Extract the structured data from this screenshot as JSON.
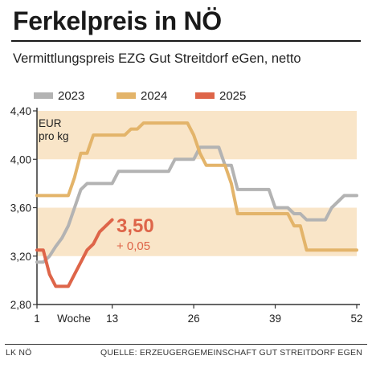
{
  "header": {
    "title": "Ferkelpreis in NÖ",
    "subtitle": "Vermittlungspreis EZG Gut Streitdorf eGen, netto"
  },
  "footer": {
    "left": "LK NÖ",
    "right": "QUELLE: ERZEUGERGEMEINSCHAFT GUT STREITDORF EGEN"
  },
  "colors": {
    "y2023": "#b3b3b3",
    "y2024": "#e3b46a",
    "y2025": "#de6549",
    "band": "#f9e5c8",
    "annotation": "#de6549"
  },
  "chart_data": {
    "type": "line",
    "unit_label": [
      "EUR",
      "pro kg"
    ],
    "xlabel": "Woche",
    "x_ticks": [
      1,
      13,
      26,
      39,
      52
    ],
    "x_tick_labels": [
      "1",
      "13",
      "26",
      "39",
      "52"
    ],
    "xlim": [
      1,
      52
    ],
    "y_ticks": [
      2.8,
      3.2,
      3.6,
      4.0,
      4.4
    ],
    "y_tick_labels": [
      "2,80",
      "3,20",
      "3,60",
      "4,00",
      "4,40"
    ],
    "ylim": [
      2.8,
      4.4
    ],
    "bands": [
      [
        3.2,
        3.6
      ],
      [
        4.0,
        4.4
      ]
    ],
    "legend_position": "top",
    "annotation": {
      "value": "3,50",
      "change": "+ 0,05"
    },
    "series": [
      {
        "name": "2023",
        "x": [
          1,
          2,
          3,
          4,
          5,
          6,
          7,
          8,
          9,
          10,
          11,
          12,
          13,
          14,
          15,
          16,
          17,
          18,
          19,
          20,
          21,
          22,
          23,
          24,
          25,
          26,
          27,
          28,
          29,
          30,
          31,
          32,
          33,
          34,
          35,
          36,
          37,
          38,
          39,
          40,
          41,
          42,
          43,
          44,
          45,
          46,
          47,
          48,
          49,
          50,
          51,
          52
        ],
        "y": [
          3.15,
          3.15,
          3.2,
          3.28,
          3.35,
          3.45,
          3.6,
          3.75,
          3.8,
          3.8,
          3.8,
          3.8,
          3.8,
          3.9,
          3.9,
          3.9,
          3.9,
          3.9,
          3.9,
          3.9,
          3.9,
          3.9,
          4.0,
          4.0,
          4.0,
          4.0,
          4.1,
          4.1,
          4.1,
          4.1,
          3.95,
          3.95,
          3.75,
          3.75,
          3.75,
          3.75,
          3.75,
          3.75,
          3.6,
          3.6,
          3.6,
          3.55,
          3.55,
          3.5,
          3.5,
          3.5,
          3.5,
          3.6,
          3.65,
          3.7,
          3.7,
          3.7
        ]
      },
      {
        "name": "2024",
        "x": [
          1,
          2,
          3,
          4,
          5,
          6,
          7,
          8,
          9,
          10,
          11,
          12,
          13,
          14,
          15,
          16,
          17,
          18,
          19,
          20,
          21,
          22,
          23,
          24,
          25,
          26,
          27,
          28,
          29,
          30,
          31,
          32,
          33,
          34,
          35,
          36,
          37,
          38,
          39,
          40,
          41,
          42,
          43,
          44,
          45,
          46,
          47,
          48,
          49,
          50,
          51,
          52
        ],
        "y": [
          3.7,
          3.7,
          3.7,
          3.7,
          3.7,
          3.7,
          3.85,
          4.05,
          4.05,
          4.2,
          4.2,
          4.2,
          4.2,
          4.2,
          4.2,
          4.25,
          4.25,
          4.3,
          4.3,
          4.3,
          4.3,
          4.3,
          4.3,
          4.3,
          4.3,
          4.2,
          4.05,
          3.95,
          3.95,
          3.95,
          3.95,
          3.8,
          3.55,
          3.55,
          3.55,
          3.55,
          3.55,
          3.55,
          3.55,
          3.55,
          3.55,
          3.45,
          3.45,
          3.25,
          3.25,
          3.25,
          3.25,
          3.25,
          3.25,
          3.25,
          3.25,
          3.25
        ]
      },
      {
        "name": "2025",
        "x": [
          1,
          2,
          3,
          4,
          5,
          6,
          7,
          8,
          9,
          10,
          11,
          12,
          13
        ],
        "y": [
          3.25,
          3.25,
          3.05,
          2.95,
          2.95,
          2.95,
          3.05,
          3.15,
          3.25,
          3.3,
          3.4,
          3.45,
          3.5
        ]
      }
    ]
  }
}
